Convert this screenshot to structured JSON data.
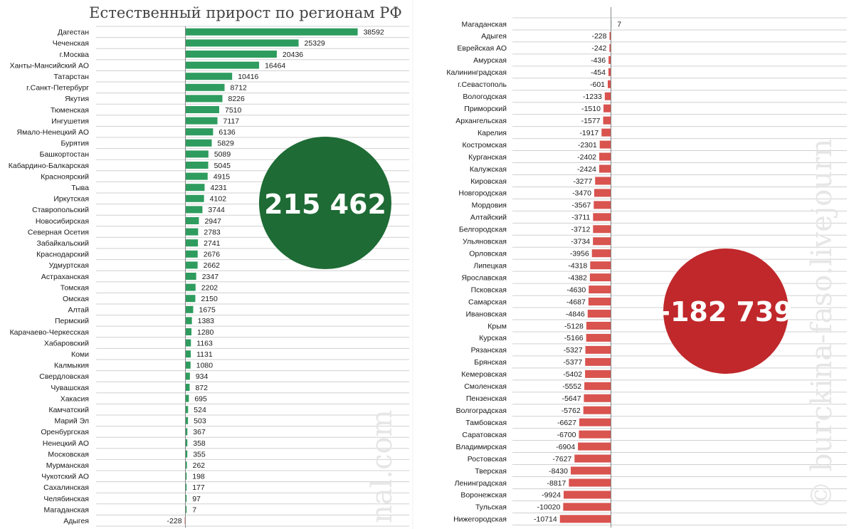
{
  "chart_data": [
    {
      "type": "bar",
      "orientation": "horizontal",
      "title": "Естественный прирост по регионам РФ",
      "bar_color": "#2e9c5e",
      "categories": [
        "Дагестан",
        "Чеченская",
        "г.Москва",
        "Ханты-Мансийский АО",
        "Татарстан",
        "г.Санкт-Петербург",
        "Якутия",
        "Тюменская",
        "Ингушетия",
        "Ямало-Ненецкий АО",
        "Бурятия",
        "Башкортостан",
        "Кабардино-Балкарская",
        "Красноярский",
        "Тыва",
        "Иркутская",
        "Ставропольский",
        "Новосибирская",
        "Северная Осетия",
        "Забайкальский",
        "Краснодарский",
        "Удмуртская",
        "Астраханская",
        "Томская",
        "Омская",
        "Алтай",
        "Пермский",
        "Карачаево-Черкесская",
        "Хабаровский",
        "Коми",
        "Калмыкия",
        "Свердловская",
        "Чувашская",
        "Хакасия",
        "Камчатский",
        "Марий Эл",
        "Оренбургская",
        "Ненецкий АО",
        "Московская",
        "Мурманская",
        "Чукотский АО",
        "Сахалинская",
        "Челябинская",
        "Магаданская",
        "Адыгея"
      ],
      "values": [
        38592,
        25329,
        20436,
        16464,
        10416,
        8712,
        8226,
        7510,
        7117,
        6136,
        5829,
        5089,
        5045,
        4915,
        4231,
        4102,
        3744,
        2947,
        2783,
        2741,
        2676,
        2662,
        2347,
        2202,
        2150,
        1675,
        1383,
        1280,
        1163,
        1131,
        1080,
        934,
        872,
        695,
        524,
        503,
        367,
        358,
        355,
        262,
        198,
        177,
        97,
        7,
        -228
      ],
      "total": "215 462",
      "total_color": "#1e6b35"
    },
    {
      "type": "bar",
      "orientation": "horizontal",
      "bar_color": "#d9534f",
      "categories": [
        "Магаданская",
        "Адыгея",
        "Еврейская АО",
        "Амурская",
        "Калининградская",
        "г.Севастополь",
        "Вологодская",
        "Приморский",
        "Архангельская",
        "Карелия",
        "Костромская",
        "Курганская",
        "Калужская",
        "Кировская",
        "Новгородская",
        "Мордовия",
        "Алтайский",
        "Белгородская",
        "Ульяновская",
        "Орловская",
        "Липецкая",
        "Ярославская",
        "Псковская",
        "Самарская",
        "Ивановская",
        "Крым",
        "Курская",
        "Рязанская",
        "Брянская",
        "Кемеровская",
        "Смоленская",
        "Пензенская",
        "Волгоградская",
        "Тамбовская",
        "Саратовская",
        "Владимирская",
        "Ростовская",
        "Тверская",
        "Ленинградская",
        "Воронежская",
        "Тульская",
        "Нижегородская"
      ],
      "values": [
        7,
        -228,
        -242,
        -436,
        -454,
        -601,
        -1233,
        -1510,
        -1577,
        -1917,
        -2301,
        -2402,
        -2424,
        -3277,
        -3470,
        -3567,
        -3711,
        -3712,
        -3734,
        -3956,
        -4318,
        -4382,
        -4630,
        -4687,
        -4846,
        -5128,
        -5166,
        -5327,
        -5377,
        -5402,
        -5552,
        -5647,
        -5762,
        -6627,
        -6700,
        -6904,
        -7627,
        -8430,
        -8817,
        -9924,
        -10020,
        -10714
      ],
      "total": "-182 739",
      "total_color": "#c0282b"
    }
  ],
  "watermarks": {
    "left": "nal.com",
    "right": "© burckina-faso.livejourn"
  }
}
